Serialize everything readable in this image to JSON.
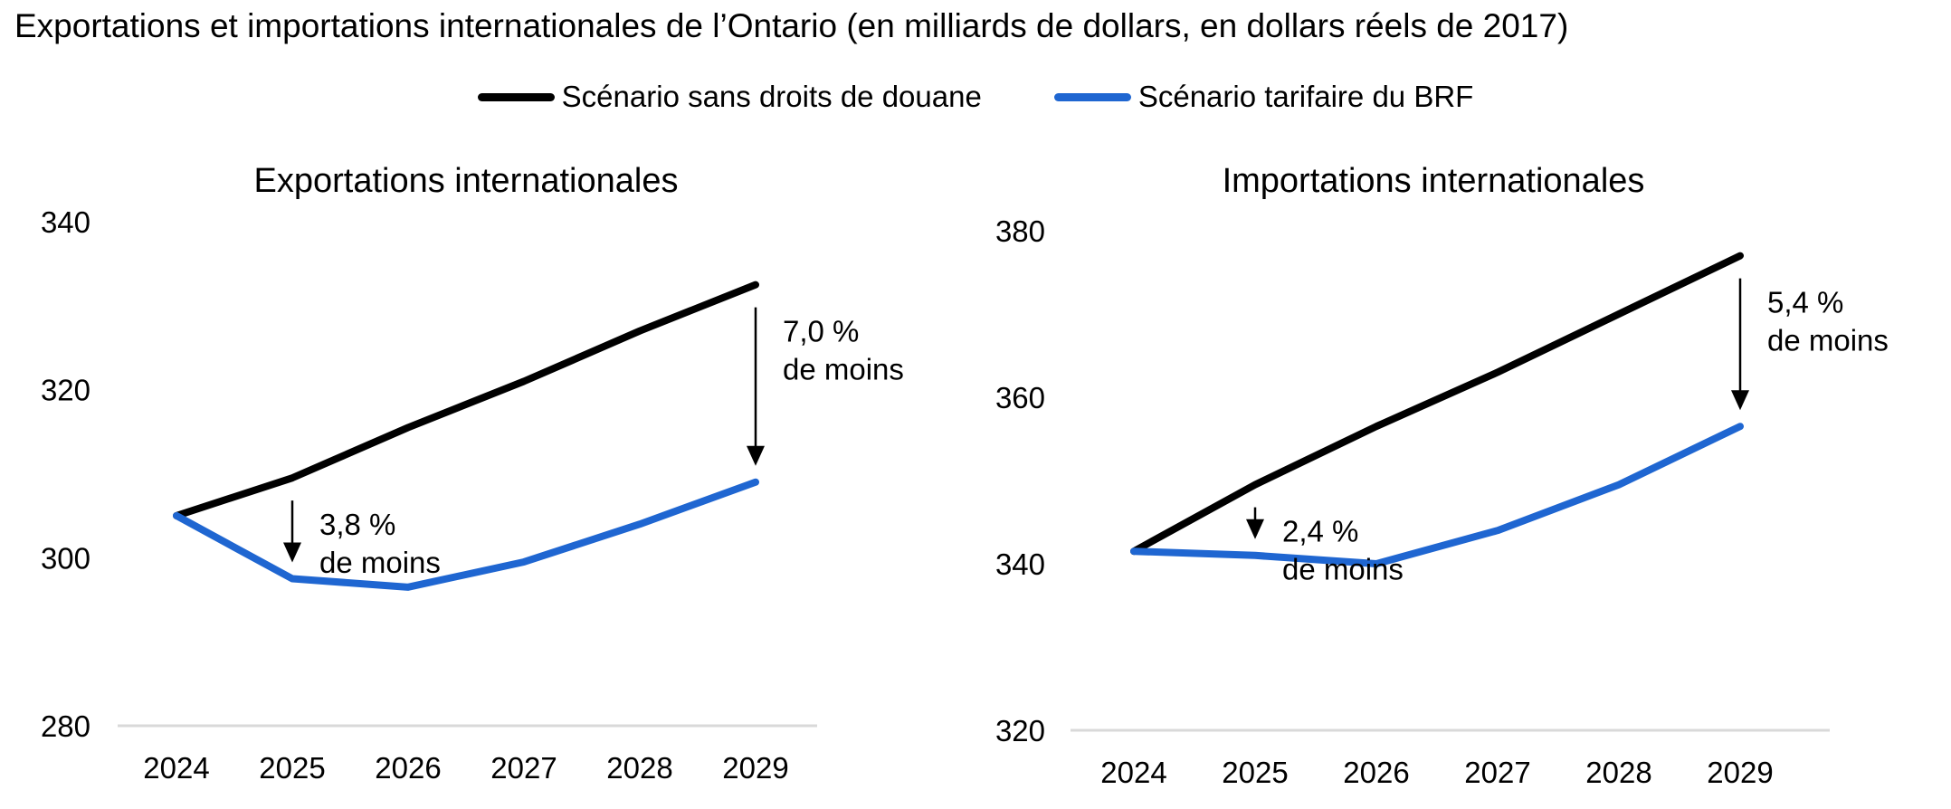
{
  "title": "Exportations et importations internationales de l’Ontario (en milliards de dollars, en dollars réels de 2017)",
  "legend": [
    {
      "label": "Scénario sans droits de douane",
      "color": "#000000"
    },
    {
      "label": "Scénario tarifaire du BRF",
      "color": "#1f66d1"
    }
  ],
  "chart_data": [
    {
      "type": "line",
      "title": "Exportations internationales",
      "x": [
        "2024",
        "2025",
        "2026",
        "2027",
        "2028",
        "2029"
      ],
      "ylim": [
        280,
        340
      ],
      "yticks": [
        "280",
        "300",
        "320",
        "340"
      ],
      "series": [
        {
          "name": "Scénario sans droits de douane",
          "color": "#000000",
          "values": [
            305.0,
            309.5,
            315.5,
            321.0,
            327.0,
            332.5
          ]
        },
        {
          "name": "Scénario tarifaire du BRF",
          "color": "#1f66d1",
          "values": [
            305.0,
            297.5,
            296.5,
            299.5,
            304.0,
            309.0
          ]
        }
      ],
      "annotations": [
        {
          "at": "2025",
          "line1": "3,8 %",
          "line2": "de moins"
        },
        {
          "at": "2029",
          "line1": "7,0 %",
          "line2": "de moins"
        }
      ]
    },
    {
      "type": "line",
      "title": "Importations internationales",
      "x": [
        "2024",
        "2025",
        "2026",
        "2027",
        "2028",
        "2029"
      ],
      "ylim": [
        320,
        380
      ],
      "yticks": [
        "320",
        "340",
        "360",
        "380"
      ],
      "series": [
        {
          "name": "Scénario sans droits de douane",
          "color": "#000000",
          "values": [
            341.5,
            349.5,
            356.5,
            363.0,
            370.0,
            377.0
          ]
        },
        {
          "name": "Scénario tarifaire du BRF",
          "color": "#1f66d1",
          "values": [
            341.5,
            341.0,
            340.0,
            344.0,
            349.5,
            356.5
          ]
        }
      ],
      "annotations": [
        {
          "at": "2025",
          "line1": "2,4 %",
          "line2": "de moins"
        },
        {
          "at": "2029",
          "line1": "5,4 %",
          "line2": "de moins"
        }
      ]
    }
  ]
}
